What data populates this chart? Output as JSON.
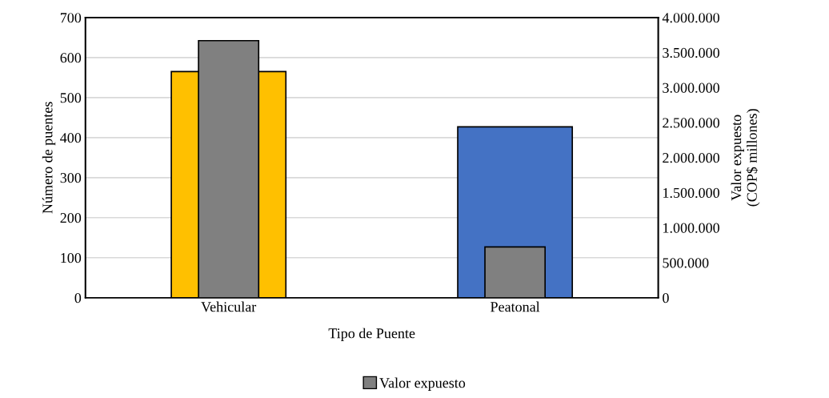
{
  "chart_data": {
    "type": "bar",
    "xlabel": "Tipo de Puente",
    "ylabel": "Número de puentes",
    "y2label": "Valor expuesto\n(COP$ millones)",
    "categories": [
      "Vehicular",
      "Peatonal"
    ],
    "series": [
      {
        "colors": [
          "#ffc000",
          "#4472c4"
        ],
        "values": [
          565,
          427
        ]
      },
      {
        "name": "Valor expuesto",
        "color": "#808080",
        "axis": "y2",
        "values": [
          3670000,
          725000
        ]
      }
    ],
    "ylim": [
      0,
      700
    ],
    "yticks": [
      0,
      100,
      200,
      300,
      400,
      500,
      600,
      700
    ],
    "y2lim": [
      0,
      4000000
    ],
    "y2ticks": [
      {
        "value": 0,
        "label": "0"
      },
      {
        "value": 500000,
        "label": "500.000"
      },
      {
        "value": 1000000,
        "label": "1.000.000"
      },
      {
        "value": 1500000,
        "label": "1.500.000"
      },
      {
        "value": 2000000,
        "label": "2.000.000"
      },
      {
        "value": 2500000,
        "label": "2.500.000"
      },
      {
        "value": 3000000,
        "label": "3.000.000"
      },
      {
        "value": 3500000,
        "label": "3.500.000"
      },
      {
        "value": 4000000,
        "label": "4.000.000"
      }
    ],
    "grid": "y",
    "legend": "bottom"
  }
}
